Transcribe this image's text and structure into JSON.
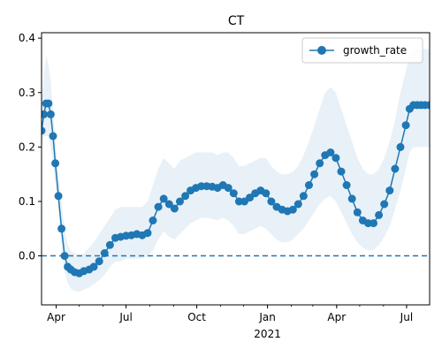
{
  "chart_data": {
    "type": "line",
    "title": "CT",
    "xlabel": "",
    "ylabel": "",
    "x_axis_type": "date",
    "xlim": [
      "2020-03-13",
      "2021-07-31"
    ],
    "ylim": [
      -0.09,
      0.41
    ],
    "yticks": [
      0.0,
      0.1,
      0.2,
      0.3,
      0.4
    ],
    "ytick_labels": [
      "0.0",
      "0.1",
      "0.2",
      "0.3",
      "0.4"
    ],
    "xticks": [
      {
        "date": "2020-04-01",
        "label": "Apr"
      },
      {
        "date": "2020-07-01",
        "label": "Jul"
      },
      {
        "date": "2020-10-01",
        "label": "Oct"
      },
      {
        "date": "2021-01-01",
        "label": "Jan"
      },
      {
        "date": "2021-04-01",
        "label": "Apr"
      },
      {
        "date": "2021-07-01",
        "label": "Jul"
      }
    ],
    "x_year_label": "2021",
    "legend": {
      "position": "upper right",
      "entries": [
        "growth_rate"
      ]
    },
    "reference_line": {
      "y": 0.0,
      "style": "dashed"
    },
    "grid": false,
    "colors": {
      "series": "#1f77b4",
      "band": "#1f77b4",
      "reference_line": "#1f77b4"
    },
    "series": [
      {
        "name": "growth_rate",
        "marker": "circle",
        "x": [
          "2020-03-13",
          "2020-03-16",
          "2020-03-19",
          "2020-03-22",
          "2020-03-25",
          "2020-03-28",
          "2020-03-31",
          "2020-04-04",
          "2020-04-08",
          "2020-04-12",
          "2020-04-16",
          "2020-04-20",
          "2020-04-25",
          "2020-05-01",
          "2020-05-07",
          "2020-05-14",
          "2020-05-20",
          "2020-05-27",
          "2020-06-03",
          "2020-06-10",
          "2020-06-17",
          "2020-06-24",
          "2020-07-01",
          "2020-07-08",
          "2020-07-15",
          "2020-07-22",
          "2020-07-29",
          "2020-08-05",
          "2020-08-12",
          "2020-08-19",
          "2020-08-26",
          "2020-09-02",
          "2020-09-09",
          "2020-09-16",
          "2020-09-23",
          "2020-09-30",
          "2020-10-07",
          "2020-10-14",
          "2020-10-21",
          "2020-10-28",
          "2020-11-04",
          "2020-11-11",
          "2020-11-18",
          "2020-11-25",
          "2020-12-02",
          "2020-12-09",
          "2020-12-16",
          "2020-12-23",
          "2020-12-30",
          "2021-01-06",
          "2021-01-13",
          "2021-01-20",
          "2021-01-27",
          "2021-02-03",
          "2021-02-10",
          "2021-02-17",
          "2021-02-24",
          "2021-03-03",
          "2021-03-10",
          "2021-03-17",
          "2021-03-24",
          "2021-03-31",
          "2021-04-07",
          "2021-04-14",
          "2021-04-21",
          "2021-04-28",
          "2021-05-05",
          "2021-05-12",
          "2021-05-19",
          "2021-05-26",
          "2021-06-02",
          "2021-06-09",
          "2021-06-16",
          "2021-06-23",
          "2021-06-30",
          "2021-07-05",
          "2021-07-10",
          "2021-07-15",
          "2021-07-20",
          "2021-07-25",
          "2021-07-31"
        ],
        "y": [
          0.23,
          0.26,
          0.28,
          0.28,
          0.26,
          0.22,
          0.17,
          0.11,
          0.05,
          0.0,
          -0.02,
          -0.025,
          -0.03,
          -0.032,
          -0.028,
          -0.025,
          -0.02,
          -0.01,
          0.005,
          0.02,
          0.033,
          0.035,
          0.037,
          0.038,
          0.04,
          0.038,
          0.042,
          0.065,
          0.09,
          0.105,
          0.095,
          0.087,
          0.1,
          0.11,
          0.12,
          0.125,
          0.128,
          0.128,
          0.127,
          0.125,
          0.13,
          0.125,
          0.115,
          0.1,
          0.1,
          0.107,
          0.115,
          0.12,
          0.115,
          0.1,
          0.09,
          0.085,
          0.082,
          0.085,
          0.095,
          0.11,
          0.13,
          0.15,
          0.17,
          0.185,
          0.19,
          0.18,
          0.155,
          0.13,
          0.105,
          0.08,
          0.065,
          0.06,
          0.06,
          0.075,
          0.095,
          0.12,
          0.16,
          0.2,
          0.24,
          0.27,
          0.277,
          0.277,
          0.277,
          0.277,
          0.277
        ],
        "upper": [
          0.28,
          0.33,
          0.37,
          0.35,
          0.32,
          0.27,
          0.21,
          0.15,
          0.1,
          0.05,
          0.02,
          0.01,
          0.005,
          0.0,
          0.005,
          0.015,
          0.025,
          0.04,
          0.055,
          0.07,
          0.085,
          0.09,
          0.09,
          0.09,
          0.09,
          0.09,
          0.1,
          0.13,
          0.16,
          0.18,
          0.17,
          0.16,
          0.175,
          0.18,
          0.185,
          0.19,
          0.19,
          0.19,
          0.19,
          0.185,
          0.19,
          0.19,
          0.18,
          0.165,
          0.165,
          0.17,
          0.175,
          0.18,
          0.18,
          0.165,
          0.155,
          0.15,
          0.15,
          0.155,
          0.165,
          0.185,
          0.21,
          0.24,
          0.27,
          0.3,
          0.31,
          0.3,
          0.27,
          0.24,
          0.21,
          0.18,
          0.16,
          0.15,
          0.15,
          0.16,
          0.18,
          0.21,
          0.25,
          0.3,
          0.34,
          0.37,
          0.38,
          0.38,
          0.38,
          0.38,
          0.38
        ],
        "lower": [
          0.2,
          0.22,
          0.22,
          0.22,
          0.2,
          0.17,
          0.13,
          0.08,
          0.02,
          -0.03,
          -0.05,
          -0.06,
          -0.065,
          -0.066,
          -0.062,
          -0.058,
          -0.052,
          -0.045,
          -0.035,
          -0.02,
          -0.01,
          -0.01,
          -0.005,
          -0.005,
          -0.005,
          -0.005,
          0.0,
          0.01,
          0.03,
          0.045,
          0.035,
          0.03,
          0.04,
          0.05,
          0.06,
          0.065,
          0.07,
          0.07,
          0.068,
          0.065,
          0.07,
          0.065,
          0.055,
          0.04,
          0.04,
          0.045,
          0.05,
          0.055,
          0.05,
          0.04,
          0.03,
          0.025,
          0.025,
          0.03,
          0.04,
          0.05,
          0.065,
          0.08,
          0.095,
          0.105,
          0.11,
          0.1,
          0.08,
          0.06,
          0.04,
          0.025,
          0.015,
          0.01,
          0.01,
          0.02,
          0.035,
          0.055,
          0.085,
          0.12,
          0.16,
          0.19,
          0.2,
          0.2,
          0.2,
          0.2,
          0.2
        ]
      }
    ]
  }
}
